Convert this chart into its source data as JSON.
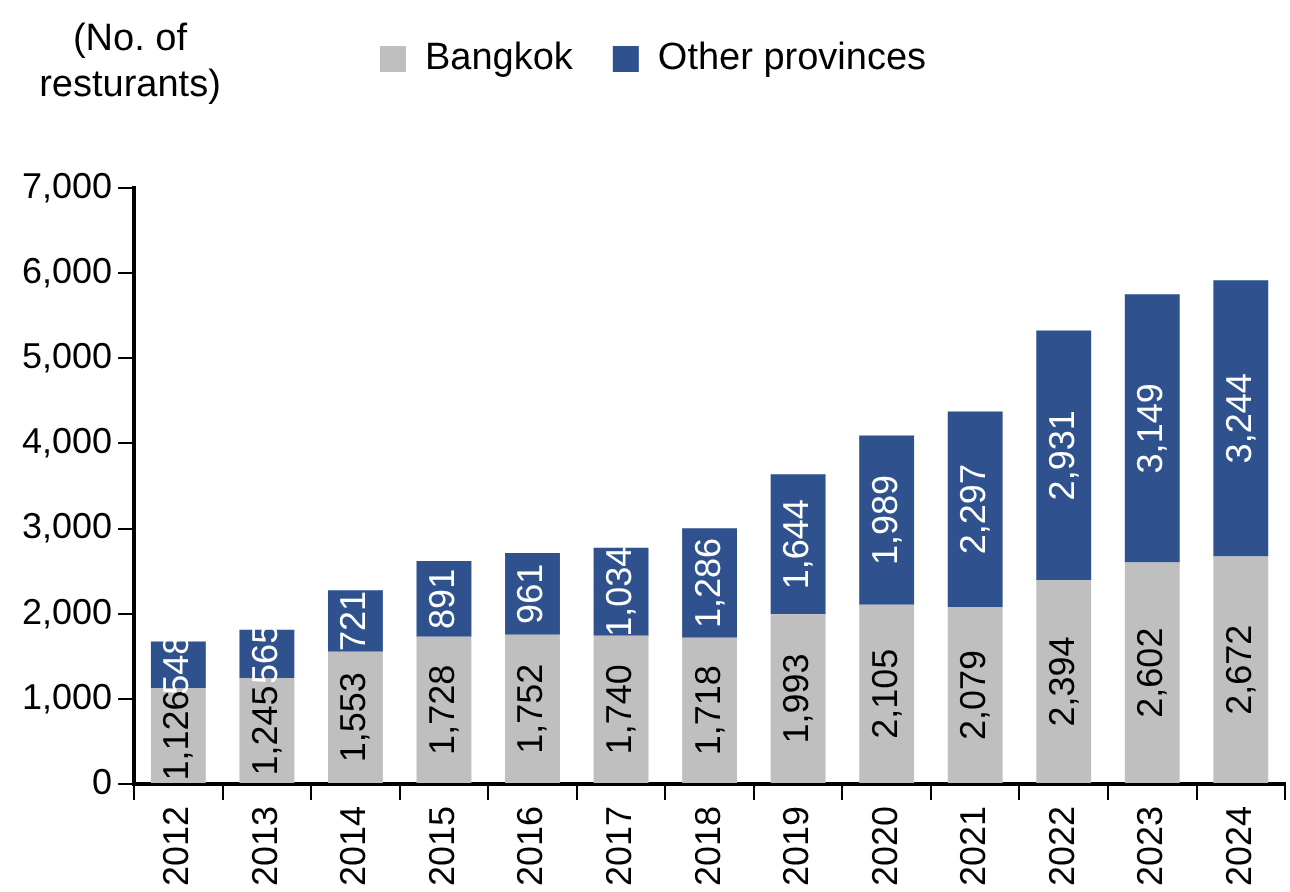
{
  "chart_data": {
    "type": "bar",
    "ylabel": "(No. of resturants)",
    "categories": [
      "2012",
      "2013",
      "2014",
      "2015",
      "2016",
      "2017",
      "2018",
      "2019",
      "2020",
      "2021",
      "2022",
      "2023",
      "2024"
    ],
    "series": [
      {
        "name": "Bangkok",
        "color": "#bfbfbf",
        "values": [
          1126,
          1245,
          1553,
          1728,
          1752,
          1740,
          1718,
          1993,
          2105,
          2079,
          2394,
          2602,
          2672
        ],
        "value_labels": [
          "1,126",
          "1,245",
          "1,553",
          "1,728",
          "1,752",
          "1,740",
          "1,718",
          "1,993",
          "2,105",
          "2,079",
          "2,394",
          "2,602",
          "2,672"
        ]
      },
      {
        "name": "Other provinces",
        "color": "#2f528f",
        "values": [
          548,
          565,
          721,
          891,
          961,
          1034,
          1286,
          1644,
          1989,
          2297,
          2931,
          3149,
          3244
        ],
        "value_labels": [
          "548",
          "565",
          "721",
          "891",
          "961",
          "1,034",
          "1,286",
          "1,644",
          "1,989",
          "2,297",
          "2,931",
          "3,149",
          "3,244"
        ]
      }
    ],
    "stacked": true,
    "ylim": [
      0,
      7000
    ],
    "yticks": [
      0,
      {
        "value": 1000,
        "label": "1,000"
      },
      {
        "value": 2000,
        "label": "2,000"
      },
      {
        "value": 3000,
        "label": "3,000"
      },
      {
        "value": 4000,
        "label": "4,000"
      },
      {
        "value": 5000,
        "label": "5,000"
      },
      {
        "value": 6000,
        "label": "6,000"
      },
      {
        "value": 7000,
        "label": "7,000"
      }
    ],
    "legend": "top"
  }
}
